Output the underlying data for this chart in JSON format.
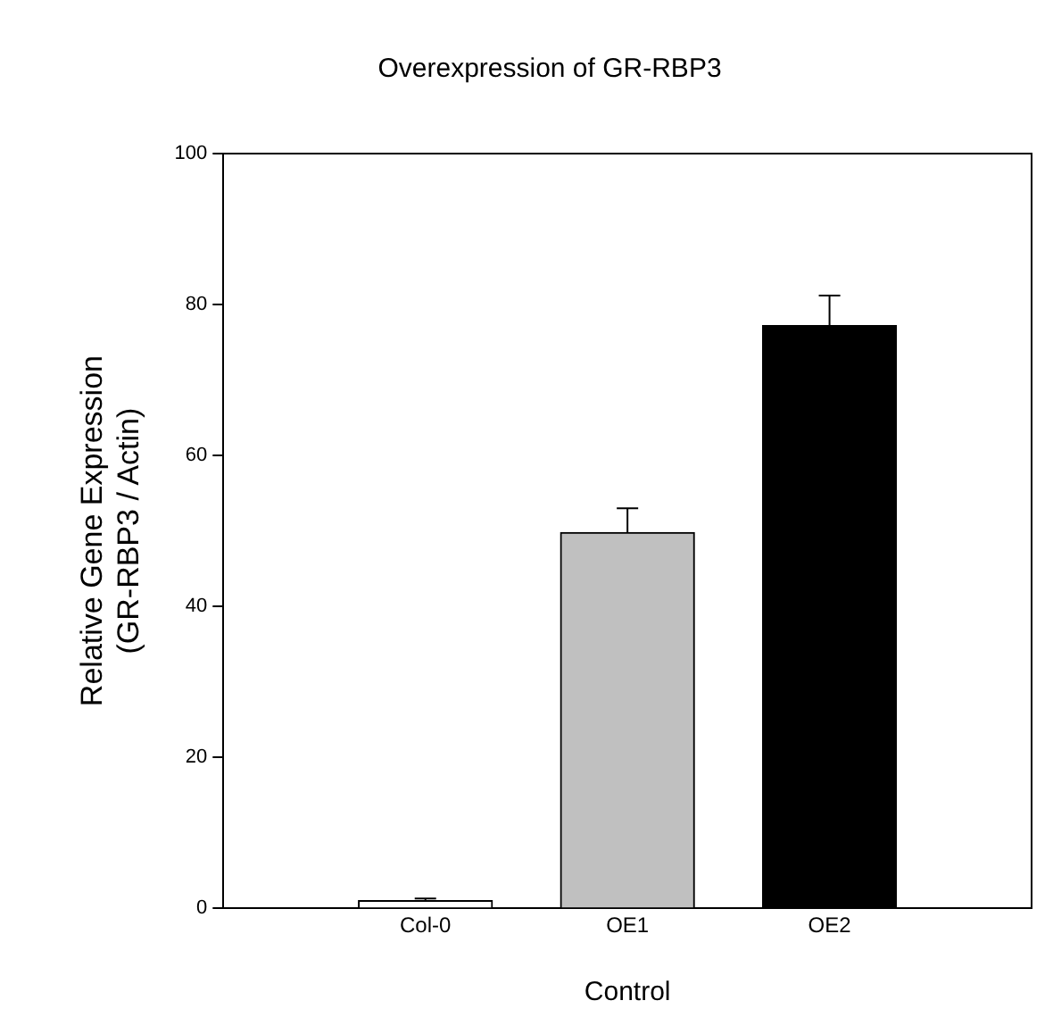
{
  "chart_data": {
    "type": "bar",
    "title": "Overexpression of GR-RBP3",
    "xlabel": "Control",
    "ylabel": "Relative Gene Expression\n(GR-RBP3 / Actin)",
    "categories": [
      "Col-0",
      "OE1",
      "OE2"
    ],
    "values": [
      1,
      49.8,
      77.2
    ],
    "colors": [
      "#ffffff",
      "#c0c0c0",
      "#000000"
    ],
    "errors": [
      [
        1,
        1.3
      ],
      [
        49.8,
        53
      ],
      [
        77.2,
        81.2
      ]
    ],
    "ylim": [
      0,
      100
    ],
    "yticks": [
      0,
      20,
      40,
      60,
      80,
      100
    ],
    "grid": false,
    "legend": false
  }
}
